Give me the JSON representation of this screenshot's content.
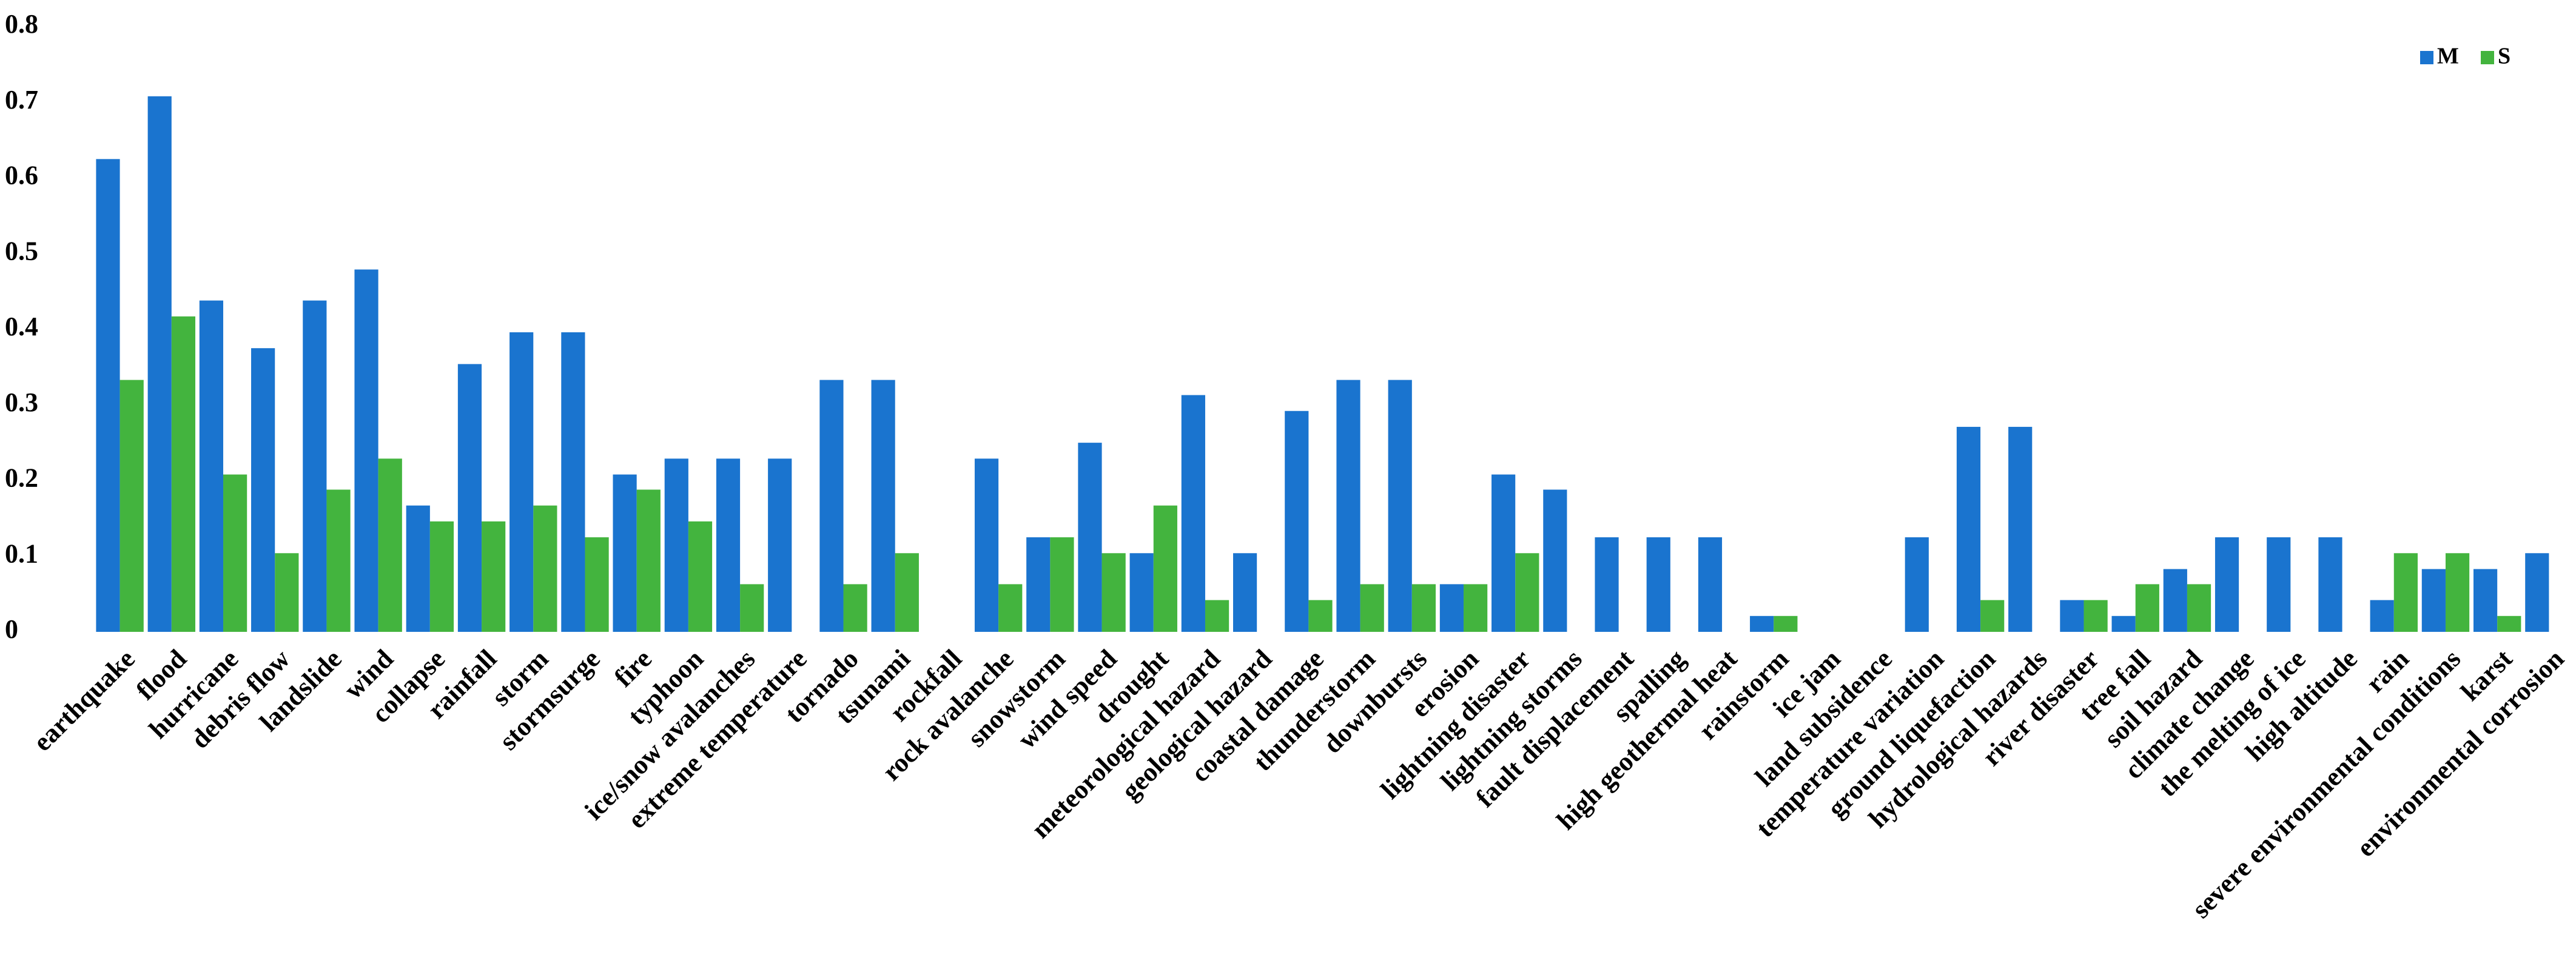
{
  "chart_data": {
    "type": "bar",
    "categories": [
      "earthquake",
      "flood",
      "hurricane",
      "debris flow",
      "landslide",
      "wind",
      "collapse",
      "rainfall",
      "storm",
      "stormsurge",
      "fire",
      "typhoon",
      "ice/snow avalanches",
      "extreme temperature",
      "tornado",
      "tsunami",
      "rockfall",
      "rock avalanche",
      "snowstorm",
      "wind speed",
      "drought",
      "meteorological hazard",
      "geological hazard",
      "coastal damage",
      "thunderstorm",
      "downbursts",
      "erosion",
      "lightning disaster",
      "lightning storms",
      "fault displacement",
      "spalling",
      "high geothermal heat",
      "rainstorm",
      "ice jam",
      "land subsidence",
      "temperature variation",
      "ground liquefaction",
      "hydrological hazards",
      "river disaster",
      "tree fall",
      "soil hazard",
      "climate change",
      "the melting of ice",
      "high altitude",
      "rain",
      "severe environmental conditions",
      "karst",
      "environmental corrosion"
    ],
    "series": [
      {
        "name": "M",
        "color": "#1a74cf",
        "values": [
          0.625,
          0.708,
          0.438,
          0.375,
          0.438,
          0.479,
          0.167,
          0.354,
          0.396,
          0.396,
          0.208,
          0.229,
          0.229,
          0.229,
          0.333,
          0.333,
          0,
          0.229,
          0.125,
          0.25,
          0.104,
          0.313,
          0.104,
          0.292,
          0.333,
          0.333,
          0.063,
          0.208,
          0.188,
          0.125,
          0.125,
          0.125,
          0.021,
          0,
          0,
          0.125,
          0.271,
          0.271,
          0.042,
          0.021,
          0.083,
          0.125,
          0.125,
          0.125,
          0.042,
          0.083,
          0.083,
          0.104
        ]
      },
      {
        "name": "S",
        "color": "#43b43e",
        "values": [
          0.333,
          0.417,
          0.208,
          0.104,
          0.188,
          0.229,
          0.146,
          0.146,
          0.167,
          0.125,
          0.188,
          0.146,
          0.063,
          0,
          0.063,
          0.104,
          0,
          0.063,
          0.125,
          0.104,
          0.167,
          0.042,
          0,
          0.042,
          0.063,
          0.063,
          0.063,
          0.104,
          0,
          0,
          0,
          0,
          0.021,
          0,
          0,
          0,
          0.042,
          0,
          0.042,
          0.063,
          0.063,
          0,
          0,
          0,
          0.104,
          0.104,
          0.021,
          0
        ]
      }
    ],
    "ylim": [
      0,
      0.8
    ],
    "yticks": [
      0,
      0.1,
      0.2,
      0.3,
      0.4,
      0.5,
      0.6,
      0.7,
      0.8
    ],
    "grid": false,
    "legend": "top-right"
  }
}
